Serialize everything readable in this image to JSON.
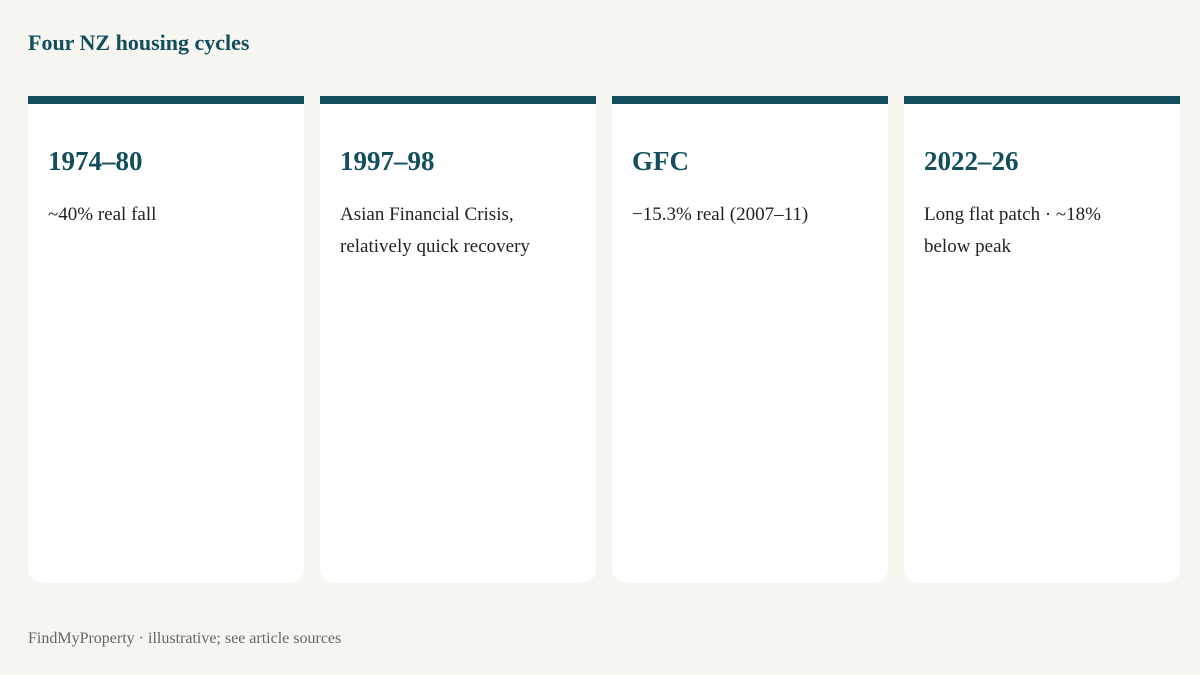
{
  "header": {
    "title": "Four NZ housing cycles"
  },
  "cards": [
    {
      "title": "1974–80",
      "text": "~40% real fall"
    },
    {
      "title": "1997–98",
      "text": "Asian Financial Crisis, relatively quick recovery"
    },
    {
      "title": "GFC",
      "text": "−15.3% real (2007–11)"
    },
    {
      "title": "2022–26",
      "text": "Long flat patch · ~18% below peak"
    }
  ],
  "footer": {
    "text": "FindMyProperty · illustrative; see article sources"
  }
}
